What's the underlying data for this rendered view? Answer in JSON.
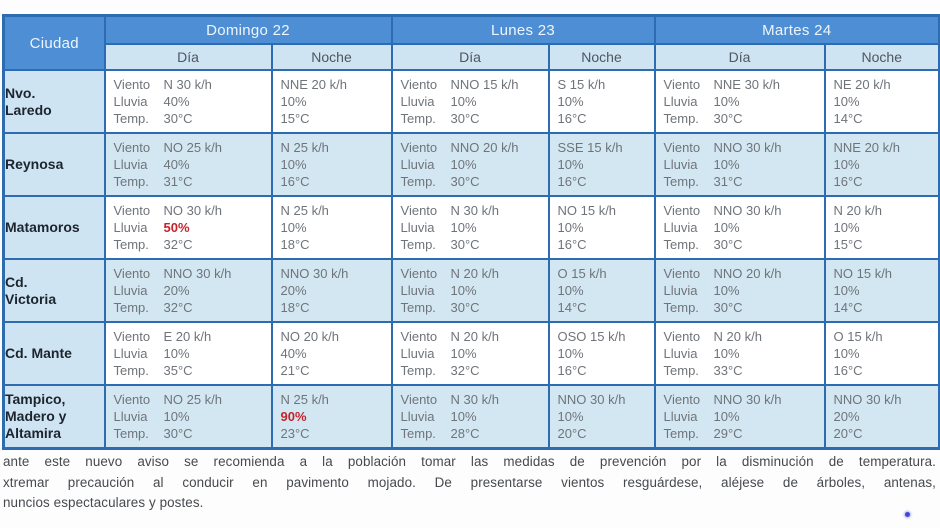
{
  "colors": {
    "header_blue": "#4e8ed4",
    "border_blue": "#2d6cb0",
    "light_blue": "#cfe4f2",
    "row_alt_blue": "#d3e7f3",
    "alert_red": "#c5232b",
    "data_text_gray": "#6f747a",
    "city_text_navy": "#1c242e"
  },
  "table": {
    "city_header": "Ciudad",
    "day_headers": [
      "Domingo 22",
      "Lunes 23",
      "Martes 24"
    ],
    "sub_headers": [
      "Día",
      "Noche"
    ],
    "labels": {
      "viento": "Viento",
      "lluvia": "Lluvia",
      "temp": "Temp."
    },
    "rows": [
      {
        "city": "Nvo.\nLaredo",
        "cells": [
          {
            "viento": "N 30 k/h",
            "lluvia": "40%",
            "temp": "30°C"
          },
          {
            "viento": "NNE 20 k/h",
            "lluvia": "10%",
            "temp": "15°C"
          },
          {
            "viento": "NNO 15 k/h",
            "lluvia": "10%",
            "temp": "30°C"
          },
          {
            "viento": "S 15 k/h",
            "lluvia": "10%",
            "temp": "16°C"
          },
          {
            "viento": "NNE 30 k/h",
            "lluvia": "10%",
            "temp": "30°C"
          },
          {
            "viento": "NE 20 k/h",
            "lluvia": "10%",
            "temp": "14°C"
          }
        ]
      },
      {
        "city": "Reynosa",
        "cells": [
          {
            "viento": "NO 25 k/h",
            "lluvia": "40%",
            "temp": "31°C"
          },
          {
            "viento": "N 25 k/h",
            "lluvia": "10%",
            "temp": "16°C"
          },
          {
            "viento": "NNO 20 k/h",
            "lluvia": "10%",
            "temp": "30°C"
          },
          {
            "viento": "SSE 15 k/h",
            "lluvia": "10%",
            "temp": "16°C"
          },
          {
            "viento": "NNO 30 k/h",
            "lluvia": "10%",
            "temp": "31°C"
          },
          {
            "viento": "NNE 20 k/h",
            "lluvia": "10%",
            "temp": "16°C"
          }
        ]
      },
      {
        "city": "Matamoros",
        "cells": [
          {
            "viento": "NO 30 k/h",
            "lluvia": "50%",
            "temp": "32°C",
            "alert": "lluvia"
          },
          {
            "viento": "N 25 k/h",
            "lluvia": "10%",
            "temp": "18°C"
          },
          {
            "viento": "N 30 k/h",
            "lluvia": "10%",
            "temp": "30°C"
          },
          {
            "viento": "NO 15 k/h",
            "lluvia": "10%",
            "temp": "16°C"
          },
          {
            "viento": "NNO 30 k/h",
            "lluvia": "10%",
            "temp": "30°C"
          },
          {
            "viento": "N 20 k/h",
            "lluvia": "10%",
            "temp": "15°C"
          }
        ]
      },
      {
        "city": "Cd.\nVictoria",
        "cells": [
          {
            "viento": "NNO 30 k/h",
            "lluvia": "20%",
            "temp": "32°C"
          },
          {
            "viento": "NNO 30 k/h",
            "lluvia": "20%",
            "temp": "18°C"
          },
          {
            "viento": "N 20 k/h",
            "lluvia": "10%",
            "temp": "30°C"
          },
          {
            "viento": "O 15 k/h",
            "lluvia": "10%",
            "temp": "14°C"
          },
          {
            "viento": "NNO 20 k/h",
            "lluvia": "10%",
            "temp": "30°C"
          },
          {
            "viento": "NO 15 k/h",
            "lluvia": "10%",
            "temp": "14°C"
          }
        ]
      },
      {
        "city": "Cd. Mante",
        "cells": [
          {
            "viento": "E 20 k/h",
            "lluvia": "10%",
            "temp": "35°C"
          },
          {
            "viento": "NO 20 k/h",
            "lluvia": "40%",
            "temp": "21°C"
          },
          {
            "viento": "N 20 k/h",
            "lluvia": "10%",
            "temp": "32°C"
          },
          {
            "viento": "OSO 15 k/h",
            "lluvia": "10%",
            "temp": "16°C"
          },
          {
            "viento": "N 20 k/h",
            "lluvia": "10%",
            "temp": "33°C"
          },
          {
            "viento": "O 15 k/h",
            "lluvia": "10%",
            "temp": "16°C"
          }
        ]
      },
      {
        "city": "Tampico,\nMadero y\nAltamira",
        "cells": [
          {
            "viento": "NO 25 k/h",
            "lluvia": "10%",
            "temp": "30°C"
          },
          {
            "viento": "N 25 k/h",
            "lluvia": "90%",
            "temp": "23°C",
            "alert": "lluvia"
          },
          {
            "viento": "N 30 k/h",
            "lluvia": "10%",
            "temp": "28°C"
          },
          {
            "viento": "NNO 30 k/h",
            "lluvia": "10%",
            "temp": "20°C"
          },
          {
            "viento": "NNO 30 k/h",
            "lluvia": "10%",
            "temp": "29°C"
          },
          {
            "viento": "NNO 30 k/h",
            "lluvia": "20%",
            "temp": "20°C"
          }
        ]
      }
    ]
  },
  "footer": {
    "lines": [
      "ante este nuevo aviso se recomienda a la población tomar las medidas de prevención por la disminución de temperatura.",
      "xtremar precaución al conducir en pavimento mojado. De presentarse vientos resguárdese, aléjese de árboles, antenas,",
      "nuncios espectaculares y postes."
    ]
  }
}
